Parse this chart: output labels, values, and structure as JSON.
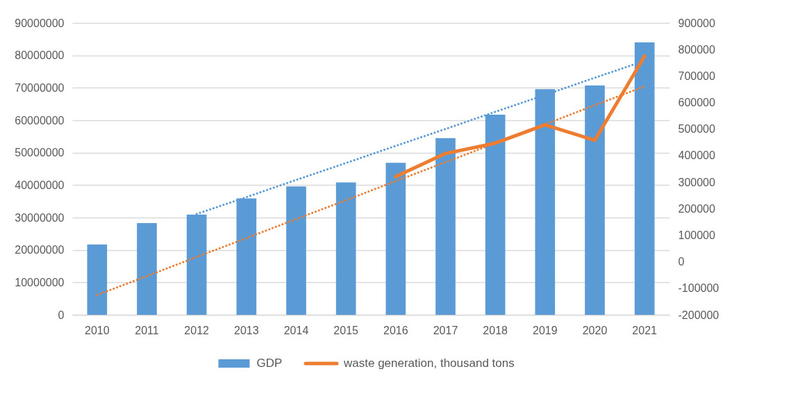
{
  "chart_data": {
    "type": "bar",
    "categories": [
      "2010",
      "2011",
      "2012",
      "2013",
      "2014",
      "2015",
      "2016",
      "2017",
      "2018",
      "2019",
      "2020",
      "2021"
    ],
    "series": [
      {
        "name": "GDP",
        "color": "#5b9bd5",
        "values": [
          21700000,
          28300000,
          30900000,
          35900000,
          39600000,
          40800000,
          46900000,
          54500000,
          61700000,
          69600000,
          70700000,
          84000000
        ]
      },
      {
        "type": "line",
        "color": "#5b9bd5",
        "line_style": "dotted",
        "values": [
          null,
          null,
          31100000,
          36300000,
          41600000,
          46800000,
          52100000,
          57300000,
          62600000,
          67800000,
          73100000,
          78300000
        ]
      },
      {
        "name": "waste generation, thousand tons",
        "type": "line",
        "axis": "y2",
        "color": "#ed7d31",
        "line_style": "solid",
        "values": [
          null,
          null,
          null,
          null,
          null,
          null,
          321000,
          408000,
          447000,
          516000,
          458000,
          775000
        ]
      },
      {
        "type": "line",
        "axis": "y2",
        "color": "#ed7d31",
        "line_style": "dotted",
        "values": [
          -125000,
          -54000,
          18000,
          89000,
          161000,
          232000,
          304000,
          375000,
          447000,
          518000,
          590000,
          661000
        ]
      }
    ],
    "ylim": [
      0,
      90000000
    ],
    "yticks": [
      0,
      10000000,
      20000000,
      30000000,
      40000000,
      50000000,
      60000000,
      70000000,
      80000000,
      90000000
    ],
    "y2lim": [
      -200000,
      900000
    ],
    "y2ticks": [
      -200000,
      -100000,
      0,
      100000,
      200000,
      300000,
      400000,
      500000,
      600000,
      700000,
      800000,
      900000
    ],
    "grid": "y",
    "legend": "bottom",
    "marker": "none"
  }
}
